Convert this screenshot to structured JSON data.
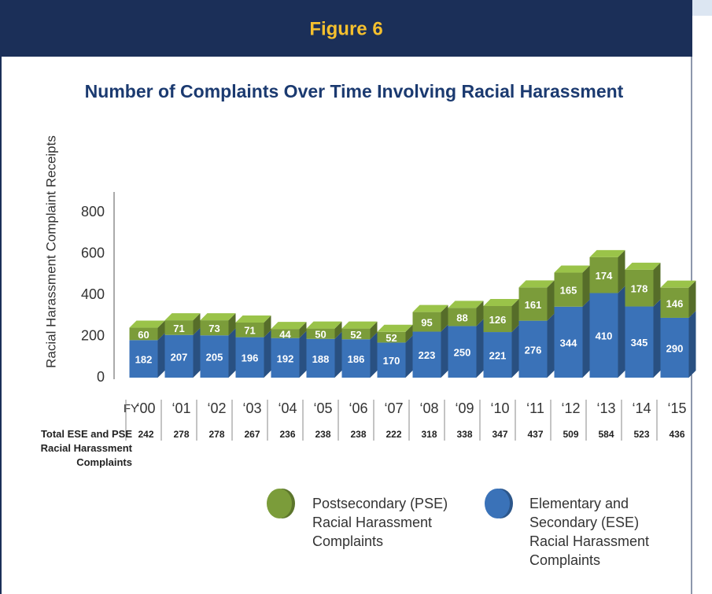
{
  "header": {
    "title": "Figure 6"
  },
  "chart_data": {
    "type": "bar",
    "stacked": true,
    "title": "Number of Complaints Over Time Involving Racial Harassment",
    "y_label": "Racial Harassment Complaint Receipts",
    "x_label": "FY",
    "categories": [
      "‘00",
      "‘01",
      "‘02",
      "‘03",
      "‘04",
      "‘05",
      "‘06",
      "‘07",
      "‘08",
      "‘09",
      "‘10",
      "‘11",
      "‘12",
      "‘13",
      "‘14",
      "‘15"
    ],
    "series": [
      {
        "name": "Postsecondary (PSE) Racial Harassment Complaints",
        "color": "#7b9c3a",
        "values": [
          60,
          71,
          73,
          71,
          44,
          50,
          52,
          52,
          95,
          88,
          126,
          161,
          165,
          174,
          178,
          146
        ]
      },
      {
        "name": "Elementary and Secondary (ESE) Racial Harassment Complaints",
        "color": "#3a72b8",
        "values": [
          182,
          207,
          205,
          196,
          192,
          188,
          186,
          170,
          223,
          250,
          221,
          276,
          344,
          410,
          345,
          290
        ]
      }
    ],
    "totals_label": "Total ESE and PSE Racial Harassment Complaints",
    "totals": [
      242,
      278,
      278,
      267,
      236,
      238,
      238,
      222,
      318,
      338,
      347,
      437,
      509,
      584,
      523,
      436
    ],
    "ylim": [
      0,
      900
    ],
    "yticks": [
      0,
      200,
      400,
      600,
      800
    ],
    "grid": false
  }
}
